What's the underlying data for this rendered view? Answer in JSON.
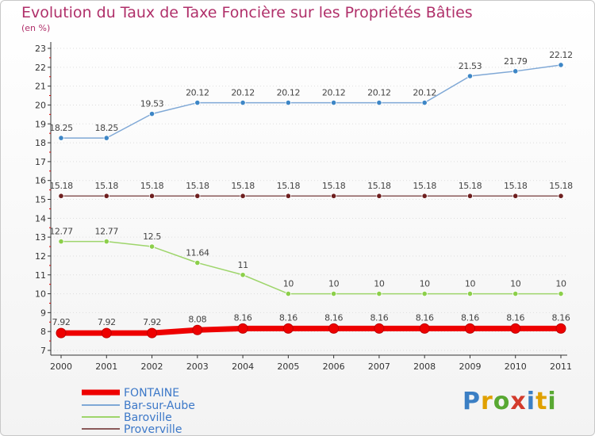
{
  "chart_data": {
    "type": "line",
    "title": "Evolution du Taux de Taxe Foncière sur les Propriétés Bâties",
    "subtitle": "(en %)",
    "categories": [
      "2000",
      "2001",
      "2002",
      "2003",
      "2004",
      "2005",
      "2006",
      "2007",
      "2008",
      "2009",
      "2010",
      "2011"
    ],
    "ylim": [
      7,
      23
    ],
    "yticks": [
      "7",
      "8",
      "9",
      "10",
      "11",
      "12",
      "13",
      "14",
      "15",
      "16",
      "17",
      "18",
      "19",
      "20",
      "21",
      "22",
      "23"
    ],
    "series": [
      {
        "name": "FONTAINE",
        "color": "#ee0000",
        "values": [
          7.92,
          7.92,
          7.92,
          8.08,
          8.16,
          8.16,
          8.16,
          8.16,
          8.16,
          8.16,
          8.16,
          8.16
        ],
        "labels": [
          "7.92",
          "7.92",
          "7.92",
          "8.08",
          "8.16",
          "8.16",
          "8.16",
          "8.16",
          "8.16",
          "8.16",
          "8.16",
          "8.16"
        ]
      },
      {
        "name": "Bar-sur-Aube",
        "color": "#7fa8d6",
        "marker": "#3d86c6",
        "values": [
          18.25,
          18.25,
          19.53,
          20.12,
          20.12,
          20.12,
          20.12,
          20.12,
          20.12,
          21.53,
          21.79,
          22.12
        ],
        "labels": [
          "18.25",
          "18.25",
          "19.53",
          "20.12",
          "20.12",
          "20.12",
          "20.12",
          "20.12",
          "20.12",
          "21.53",
          "21.79",
          "22.12"
        ]
      },
      {
        "name": "Baroville",
        "color": "#9ed56b",
        "marker": "#8ccf4a",
        "values": [
          12.77,
          12.77,
          12.5,
          11.64,
          11,
          10,
          10,
          10,
          10,
          10,
          10,
          10
        ],
        "labels": [
          "12.77",
          "12.77",
          "12.5",
          "11.64",
          "11",
          "10",
          "10",
          "10",
          "10",
          "10",
          "10",
          "10"
        ]
      },
      {
        "name": "Proverville",
        "color": "#8a5a5a",
        "marker": "#6e1f1f",
        "values": [
          15.18,
          15.18,
          15.18,
          15.18,
          15.18,
          15.18,
          15.18,
          15.18,
          15.18,
          15.18,
          15.18,
          15.18
        ],
        "labels": [
          "15.18",
          "15.18",
          "15.18",
          "15.18",
          "15.18",
          "15.18",
          "15.18",
          "15.18",
          "15.18",
          "15.18",
          "15.18",
          "15.18"
        ]
      }
    ]
  },
  "logo": {
    "letters": [
      "P",
      "r",
      "o",
      "x",
      "i",
      "t",
      "i"
    ]
  }
}
